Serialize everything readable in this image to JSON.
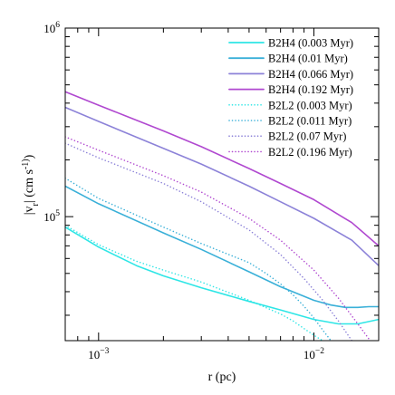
{
  "chart_data": {
    "type": "line",
    "title": "",
    "xlabel": "r (pc)",
    "ylabel": "|v_r|   (cm s^-1)",
    "x_scale": "log",
    "y_scale": "log",
    "xlim": [
      0.0007,
      0.02
    ],
    "ylim": [
      22000,
      1000000
    ],
    "grid": false,
    "legend_position": "top-right",
    "x_ticks": [
      {
        "value": 0.001,
        "base": "10",
        "exp": "−3"
      },
      {
        "value": 0.01,
        "base": "10",
        "exp": "−2"
      }
    ],
    "y_ticks": [
      {
        "value": 100000,
        "base": "10",
        "exp": "5"
      },
      {
        "value": 1000000,
        "base": "10",
        "exp": "6"
      }
    ],
    "series": [
      {
        "name": "B2H4 (0.003 Myr)",
        "color": "#2ee6e6",
        "style": "solid",
        "x": [
          0.0007,
          0.001,
          0.0015,
          0.002,
          0.003,
          0.005,
          0.007,
          0.01,
          0.013,
          0.016,
          0.02
        ],
        "y": [
          88000,
          69000,
          55000,
          48500,
          42000,
          35500,
          32000,
          28500,
          27000,
          27000,
          28500
        ]
      },
      {
        "name": "B2H4 (0.01 Myr)",
        "color": "#3ab0d8",
        "style": "solid",
        "x": [
          0.0007,
          0.001,
          0.002,
          0.003,
          0.005,
          0.007,
          0.01,
          0.012,
          0.014,
          0.016,
          0.018,
          0.02
        ],
        "y": [
          145000,
          117000,
          82000,
          67000,
          51000,
          42500,
          36000,
          34000,
          33000,
          33000,
          33300,
          33300
        ]
      },
      {
        "name": "B2H4 (0.066 Myr)",
        "color": "#8c82d8",
        "style": "solid",
        "x": [
          0.0007,
          0.001,
          0.002,
          0.003,
          0.005,
          0.007,
          0.01,
          0.015,
          0.02
        ],
        "y": [
          380000,
          320000,
          230000,
          190000,
          145000,
          120000,
          98000,
          75000,
          55000
        ]
      },
      {
        "name": "B2H4 (0.192 Myr)",
        "color": "#b048d0",
        "style": "solid",
        "x": [
          0.0007,
          0.001,
          0.002,
          0.003,
          0.005,
          0.007,
          0.01,
          0.015,
          0.02
        ],
        "y": [
          460000,
          390000,
          285000,
          235000,
          180000,
          150000,
          123000,
          93000,
          70000
        ]
      },
      {
        "name": "B2L2 (0.003 Myr)",
        "color": "#2ee6e6",
        "style": "dotted",
        "x": [
          0.0007,
          0.001,
          0.0015,
          0.002,
          0.003,
          0.005,
          0.007,
          0.008,
          0.009,
          0.01,
          0.0105,
          0.011
        ],
        "y": [
          90000,
          71000,
          58000,
          52000,
          45000,
          36000,
          30500,
          28000,
          25500,
          23500,
          22700,
          22000
        ]
      },
      {
        "name": "B2L2 (0.011 Myr)",
        "color": "#3ab0d8",
        "style": "dotted",
        "x": [
          0.0007,
          0.001,
          0.002,
          0.003,
          0.005,
          0.006,
          0.007,
          0.008,
          0.009,
          0.01,
          0.011,
          0.012
        ],
        "y": [
          160000,
          125000,
          88000,
          72000,
          57000,
          50000,
          44000,
          38500,
          33500,
          29000,
          25000,
          22000
        ]
      },
      {
        "name": "B2L2 (0.07 Myr)",
        "color": "#8c82d8",
        "style": "dotted",
        "x": [
          0.0007,
          0.001,
          0.002,
          0.003,
          0.005,
          0.007,
          0.009,
          0.011,
          0.013,
          0.015
        ],
        "y": [
          245000,
          205000,
          150000,
          120000,
          85000,
          63000,
          47000,
          36000,
          28000,
          22000
        ]
      },
      {
        "name": "B2L2 (0.196 Myr)",
        "color": "#b048d0",
        "style": "dotted",
        "x": [
          0.0007,
          0.001,
          0.002,
          0.003,
          0.005,
          0.007,
          0.01,
          0.013,
          0.016,
          0.018
        ],
        "y": [
          265000,
          225000,
          165000,
          135000,
          98000,
          75000,
          52000,
          37000,
          27000,
          22500
        ]
      }
    ]
  }
}
